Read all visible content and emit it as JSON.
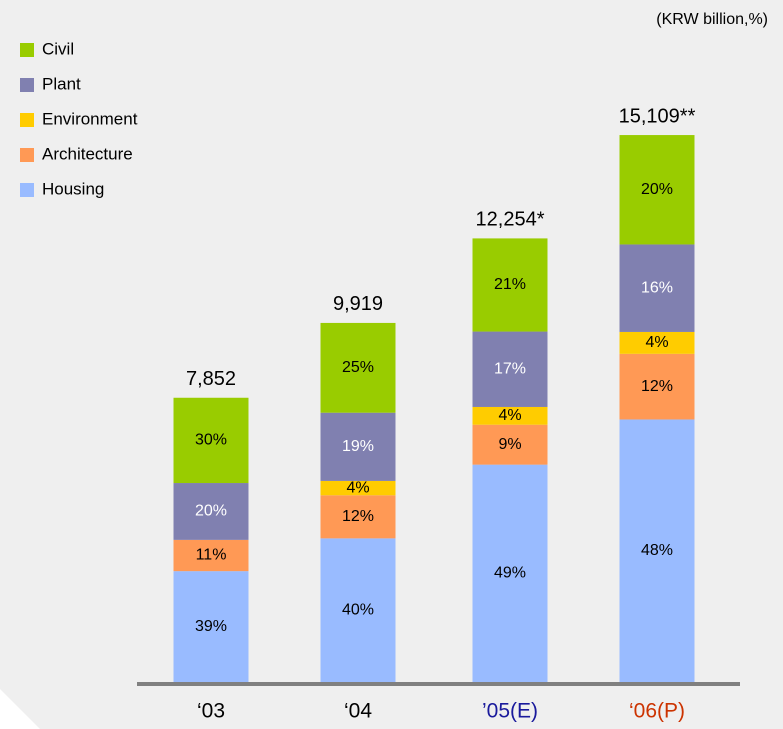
{
  "chart_data": {
    "type": "stacked_bar",
    "note": "(KRW billion,%)",
    "categories": [
      "‘03",
      "‘04",
      "’05(E)",
      "‘06(P)"
    ],
    "category_colors": [
      "#000000",
      "#000000",
      "#1a1a9c",
      "#cc3300"
    ],
    "totals": {
      "values": [
        7852,
        9919,
        12254,
        15109
      ],
      "value_labels": [
        "7,852",
        "9,919",
        "12,254*",
        "15,109**"
      ]
    },
    "series": [
      {
        "name": "Housing",
        "color": "#99bbff",
        "label_color": "#000000",
        "values": [
          39,
          40,
          49,
          48
        ],
        "value_labels": [
          "39%",
          "40%",
          "49%",
          "48%"
        ]
      },
      {
        "name": "Architecture",
        "color": "#ff9955",
        "label_color": "#000000",
        "values": [
          11,
          12,
          9,
          12
        ],
        "value_labels": [
          "11%",
          "12%",
          "9%",
          "12%"
        ]
      },
      {
        "name": "Environment",
        "color": "#ffcc00",
        "label_color": "#000000",
        "values": [
          null,
          4,
          4,
          4
        ],
        "value_labels": [
          null,
          "4%",
          "4%",
          "4%"
        ]
      },
      {
        "name": "Plant",
        "color": "#8080b0",
        "label_color": "#ffffff",
        "values": [
          20,
          19,
          17,
          16
        ],
        "value_labels": [
          "20%",
          "19%",
          "17%",
          "16%"
        ]
      },
      {
        "name": "Civil",
        "color": "#99cc00",
        "label_color": "#000000",
        "values": [
          30,
          25,
          21,
          20
        ],
        "value_labels": [
          "30%",
          "25%",
          "21%",
          "20%"
        ]
      }
    ]
  }
}
